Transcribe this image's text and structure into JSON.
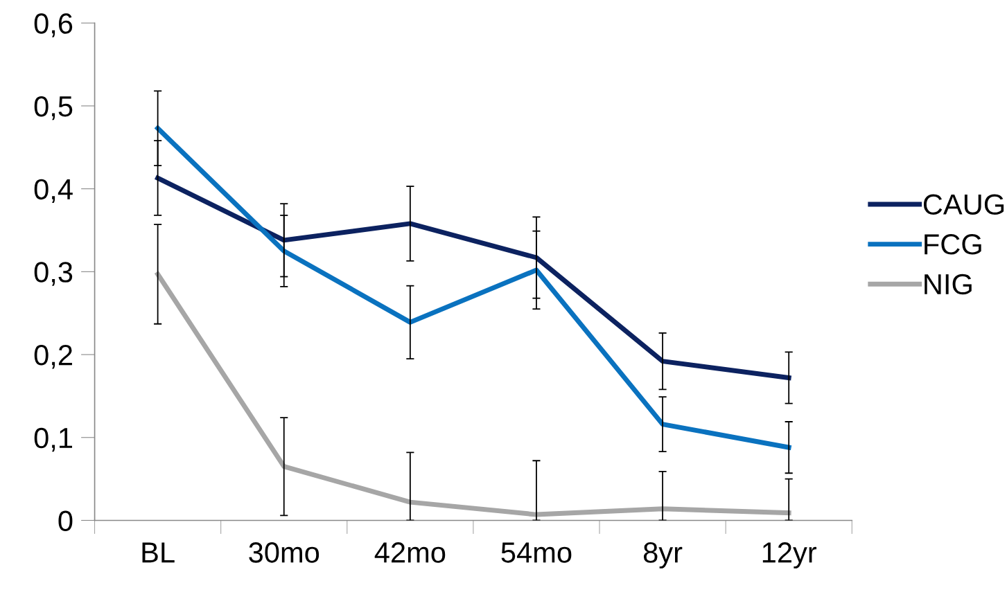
{
  "chart_data": {
    "type": "line",
    "categories": [
      "BL",
      "30mo",
      "42mo",
      "54mo",
      "8yr",
      "12yr"
    ],
    "series": [
      {
        "name": "CAUG",
        "color": "#0c2260",
        "values": [
          0.413,
          0.338,
          0.358,
          0.317,
          0.192,
          0.172
        ],
        "errors": [
          0.045,
          0.044,
          0.045,
          0.049,
          0.034,
          0.031
        ]
      },
      {
        "name": "FCG",
        "color": "#0a72bf",
        "values": [
          0.473,
          0.325,
          0.239,
          0.302,
          0.116,
          0.088
        ],
        "errors": [
          0.045,
          0.043,
          0.044,
          0.047,
          0.033,
          0.031
        ]
      },
      {
        "name": "NIG",
        "color": "#a6a6a6",
        "values": [
          0.297,
          0.065,
          0.022,
          0.007,
          0.014,
          0.009
        ],
        "errors": [
          0.06,
          0.059,
          [
            0,
            0.082
          ],
          [
            0,
            0.072
          ],
          [
            0,
            0.059
          ],
          [
            0,
            0.05
          ]
        ]
      }
    ],
    "ylim": [
      0,
      0.6
    ],
    "yticks": [
      {
        "value": 0,
        "label": "0"
      },
      {
        "value": 0.1,
        "label": "0,1"
      },
      {
        "value": 0.2,
        "label": "0,2"
      },
      {
        "value": 0.3,
        "label": "0,3"
      },
      {
        "value": 0.4,
        "label": "0,4"
      },
      {
        "value": 0.5,
        "label": "0,5"
      },
      {
        "value": 0.6,
        "label": "0,6"
      }
    ],
    "grid": false,
    "legend": "right",
    "marker": "none",
    "line_style": "solid"
  }
}
